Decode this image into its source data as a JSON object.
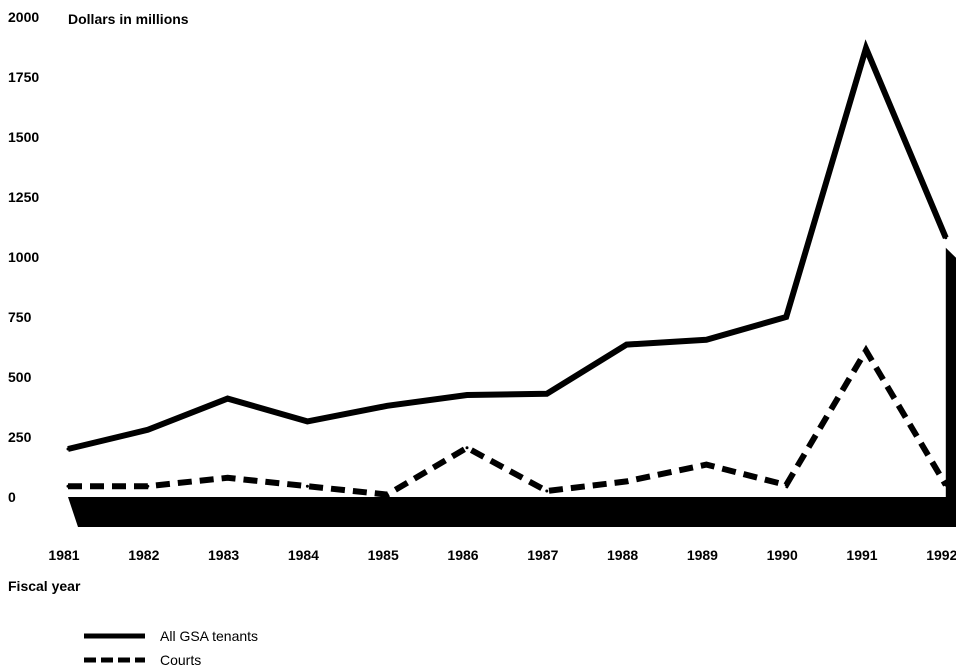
{
  "chart_data": {
    "type": "line",
    "ylabel": "Dollars in millions",
    "xlabel": "Fiscal year",
    "x": [
      "1981",
      "1982",
      "1983",
      "1984",
      "1985",
      "1986",
      "1987",
      "1988",
      "1989",
      "1990",
      "1991",
      "1992"
    ],
    "ylim": [
      0,
      2000
    ],
    "yticks": [
      "0",
      "250",
      "500",
      "750",
      "1000",
      "1250",
      "1500",
      "1750",
      "2000"
    ],
    "grid": false,
    "legend_position": "bottom-left",
    "series": [
      {
        "name": "All GSA tenants",
        "style": "solid",
        "values": [
          200,
          280,
          410,
          315,
          380,
          425,
          430,
          635,
          655,
          750,
          1870,
          1080
        ]
      },
      {
        "name": "Courts",
        "style": "dashed",
        "values": [
          45,
          45,
          80,
          45,
          10,
          205,
          25,
          65,
          135,
          50,
          610,
          50
        ]
      }
    ],
    "colors": {
      "line": "#000000",
      "axis_band": "#000000"
    }
  }
}
